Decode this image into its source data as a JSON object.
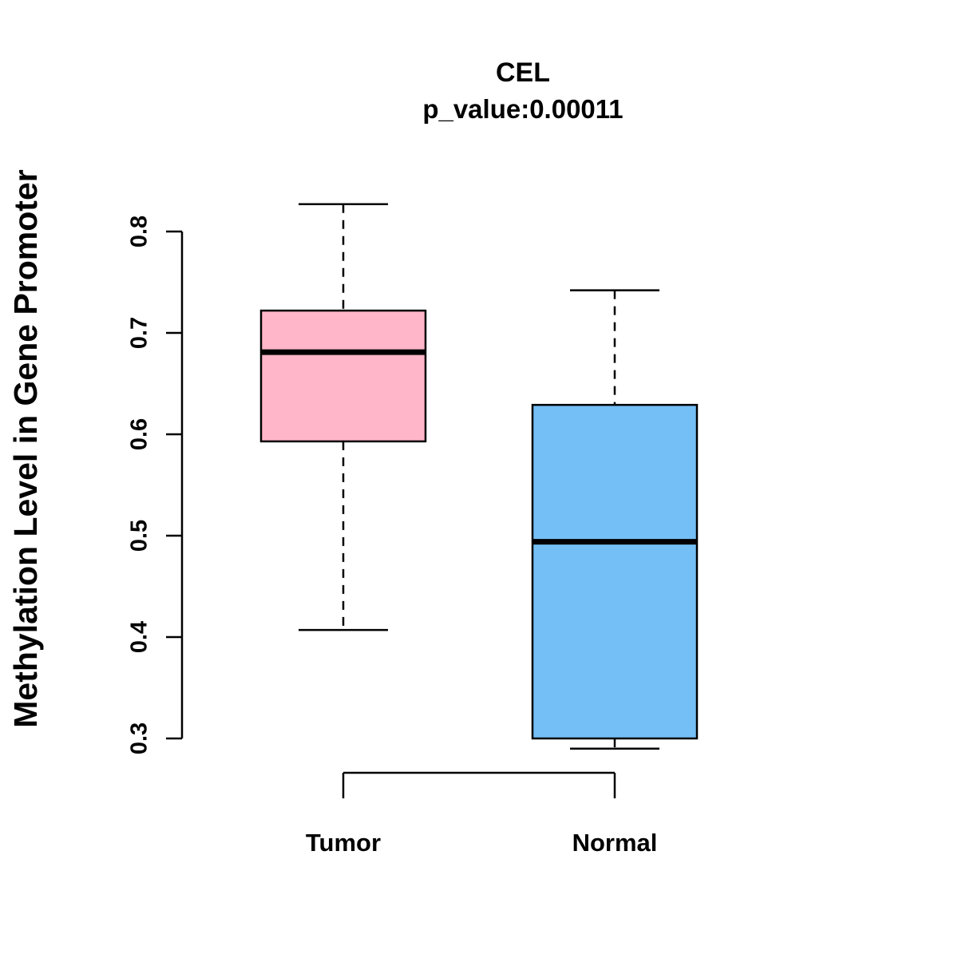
{
  "chart_data": {
    "type": "boxplot",
    "title": "CEL",
    "subtitle": "p_value:0.00011",
    "ylabel": "Methylation Level in Gene Promoter",
    "xlabel": "",
    "categories": [
      "Tumor",
      "Normal"
    ],
    "ylim": [
      0.29,
      0.83
    ],
    "yticks": [
      0.3,
      0.4,
      0.5,
      0.6,
      0.7,
      0.8
    ],
    "grid": false,
    "legend": "none",
    "series": [
      {
        "name": "Tumor",
        "color": "#FFB6C8",
        "whisker_low": 0.407,
        "q1": 0.593,
        "median": 0.681,
        "q3": 0.722,
        "whisker_high": 0.827
      },
      {
        "name": "Normal",
        "color": "#74BFF5",
        "whisker_low": 0.29,
        "q1": 0.3,
        "median": 0.494,
        "q3": 0.629,
        "whisker_high": 0.742
      }
    ]
  }
}
